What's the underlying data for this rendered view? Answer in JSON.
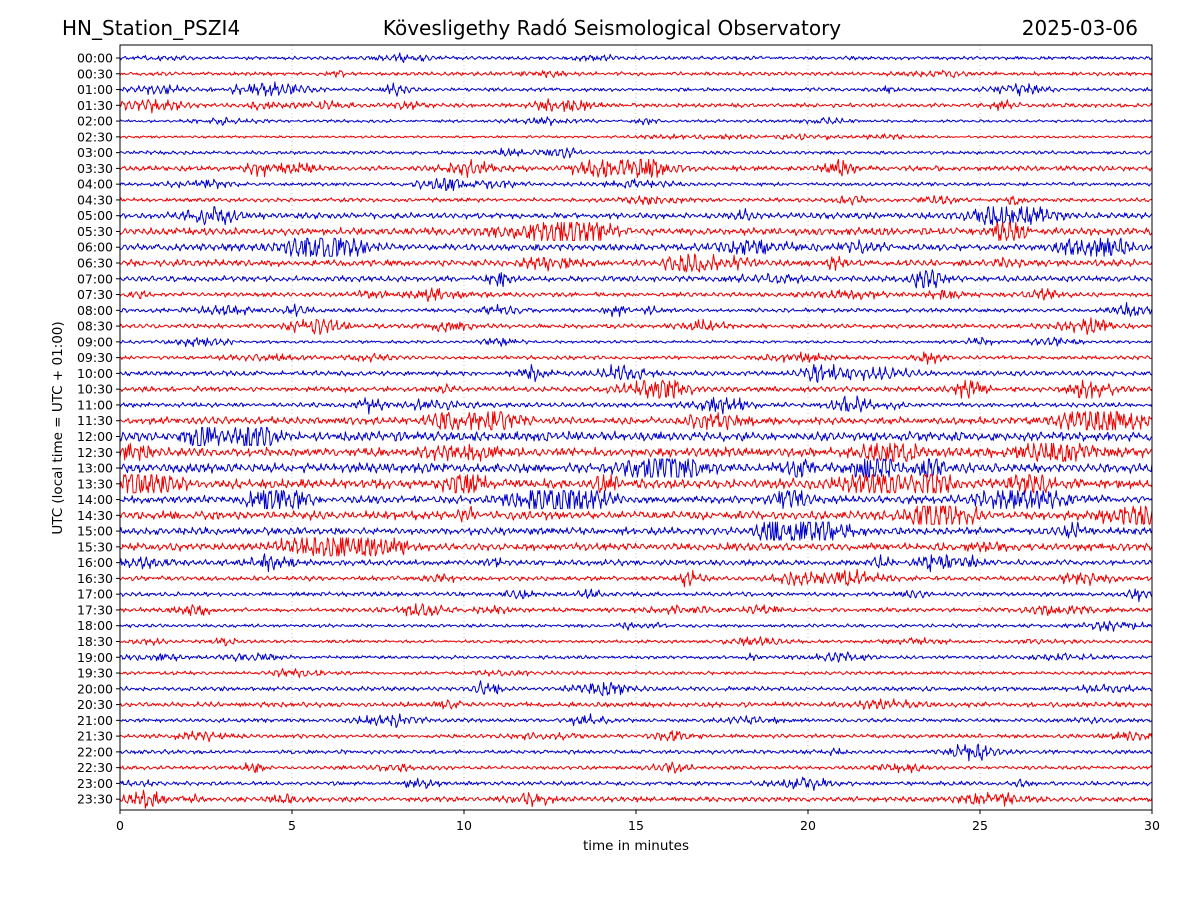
{
  "header": {
    "station": "HN_Station_PSZI4",
    "observatory": "Kövesligethy Radó Seismological Observatory",
    "date": "2025-03-06"
  },
  "chart_data": {
    "type": "line",
    "title": "Kövesligethy Radó Seismological Observatory",
    "xlabel": "time in minutes",
    "ylabel": "UTC (local time = UTC + 01:00)",
    "xlim": [
      0,
      30
    ],
    "xticks": [
      "0",
      "5",
      "10",
      "15",
      "20",
      "25",
      "30"
    ],
    "grid": "vertical dotted at x ticks",
    "row_labels": [
      "00:00",
      "00:30",
      "01:00",
      "01:30",
      "02:00",
      "02:30",
      "03:00",
      "03:30",
      "04:00",
      "04:30",
      "05:00",
      "05:30",
      "06:00",
      "06:30",
      "07:00",
      "07:30",
      "08:00",
      "08:30",
      "09:00",
      "09:30",
      "10:00",
      "10:30",
      "11:00",
      "11:30",
      "12:00",
      "12:30",
      "13:00",
      "13:30",
      "14:00",
      "14:30",
      "15:00",
      "15:30",
      "16:00",
      "16:30",
      "17:00",
      "17:30",
      "18:00",
      "18:30",
      "19:00",
      "19:30",
      "20:00",
      "20:30",
      "21:00",
      "21:30",
      "22:00",
      "22:30",
      "23:00",
      "23:30"
    ],
    "trace_colors": [
      "#0000cc",
      "#ee0000"
    ],
    "trace_activity": [
      0.55,
      0.6,
      0.6,
      0.65,
      0.45,
      0.4,
      0.55,
      0.85,
      0.6,
      0.65,
      0.95,
      1.2,
      1.1,
      1.05,
      0.9,
      0.7,
      0.65,
      0.7,
      0.5,
      0.6,
      0.8,
      0.85,
      0.75,
      1.2,
      1.5,
      1.45,
      1.5,
      1.5,
      1.25,
      1.35,
      1.2,
      1.2,
      0.9,
      0.75,
      0.7,
      0.7,
      0.55,
      0.5,
      0.55,
      0.55,
      0.7,
      0.8,
      0.6,
      0.65,
      0.65,
      0.6,
      0.65,
      0.8
    ]
  }
}
